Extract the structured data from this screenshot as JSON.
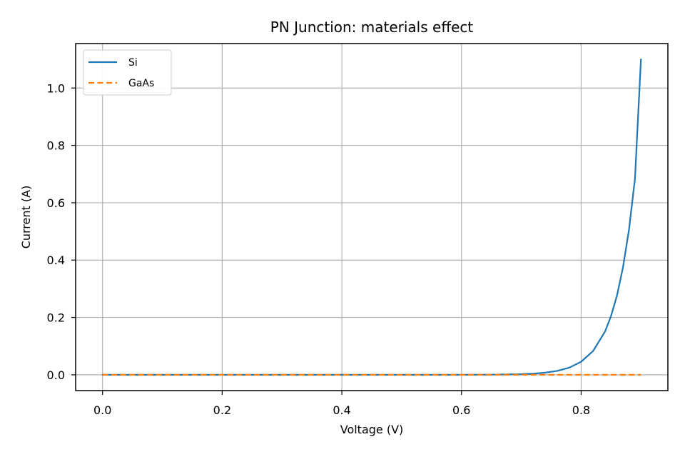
{
  "chart_data": {
    "type": "line",
    "title": "PN Junction: materials effect",
    "xlabel": "Voltage (V)",
    "ylabel": "Current (A)",
    "xlim": [
      -0.045,
      0.945
    ],
    "ylim": [
      -0.055,
      1.155
    ],
    "xticks": [
      0.0,
      0.2,
      0.4,
      0.6,
      0.8
    ],
    "yticks": [
      0.0,
      0.2,
      0.4,
      0.6,
      0.8,
      1.0
    ],
    "xtick_labels": [
      "0.0",
      "0.2",
      "0.4",
      "0.6",
      "0.8"
    ],
    "ytick_labels": [
      "0.0",
      "0.2",
      "0.4",
      "0.6",
      "0.8",
      "1.0"
    ],
    "grid": true,
    "legend_position": "top-left",
    "series": [
      {
        "name": "Si",
        "color": "#1f77b4",
        "line_style": "solid",
        "x": [
          0.0,
          0.1,
          0.2,
          0.3,
          0.4,
          0.5,
          0.6,
          0.65,
          0.7,
          0.72,
          0.74,
          0.76,
          0.78,
          0.8,
          0.82,
          0.84,
          0.85,
          0.86,
          0.87,
          0.88,
          0.89,
          0.9
        ],
        "y": [
          0.0,
          0.0,
          0.0,
          0.0,
          0.0,
          0.0,
          0.0,
          0.0005,
          0.0022,
          0.0041,
          0.0075,
          0.0136,
          0.0248,
          0.0455,
          0.083,
          0.151,
          0.205,
          0.277,
          0.375,
          0.506,
          0.684,
          1.1
        ]
      },
      {
        "name": "GaAs",
        "color": "#ff7f0e",
        "line_style": "dashed",
        "x": [
          0.0,
          0.1,
          0.2,
          0.3,
          0.4,
          0.5,
          0.6,
          0.7,
          0.8,
          0.9
        ],
        "y": [
          0.0,
          0.0,
          0.0,
          0.0,
          0.0,
          0.0,
          0.0,
          0.0,
          0.0,
          0.0
        ]
      }
    ]
  }
}
